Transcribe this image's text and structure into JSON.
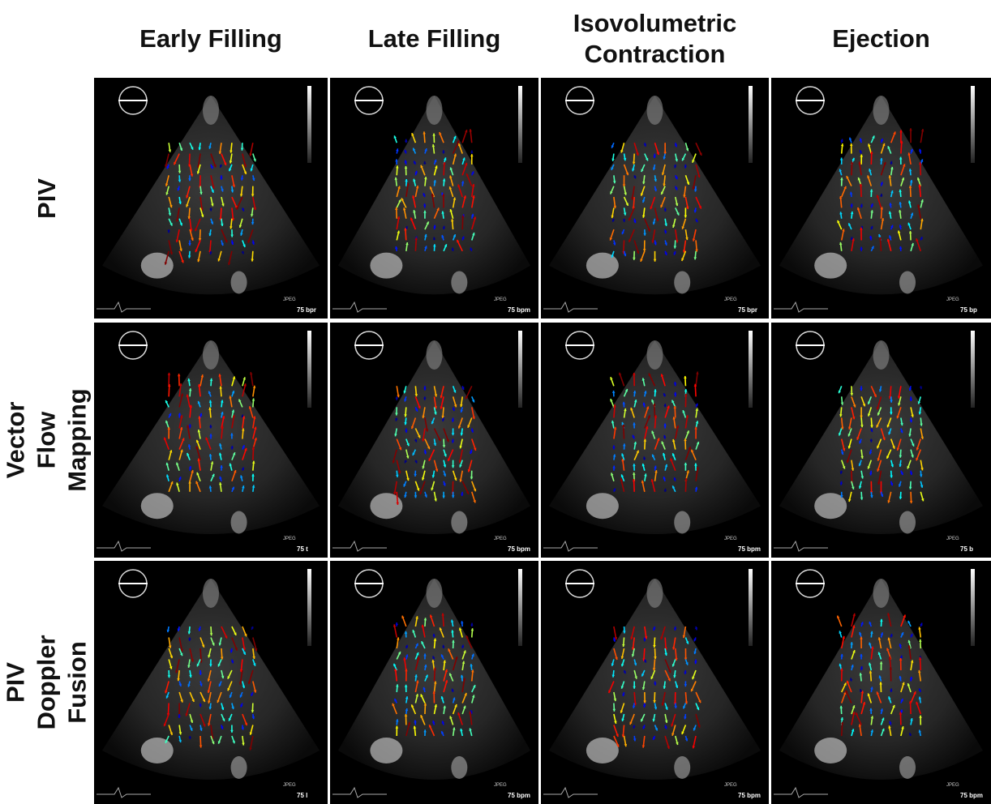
{
  "columns": [
    "Early Filling",
    "Late Filling",
    "Isovolumetric Contraction",
    "Ejection"
  ],
  "rows": [
    "PIV",
    "Vector Flow Mapping",
    "PIV Doppler Fusion"
  ],
  "panels": [
    [
      {
        "format": "JPEG",
        "rate": "75 bpr"
      },
      {
        "format": "JPEG",
        "rate": "75 bpm"
      },
      {
        "format": "JPEG",
        "rate": "75 bpr"
      },
      {
        "format": "JPEG",
        "rate": "75 bp"
      }
    ],
    [
      {
        "format": "JPEG",
        "rate": "75 t"
      },
      {
        "format": "JPEG",
        "rate": "75 bpm"
      },
      {
        "format": "JPEG",
        "rate": "75 bpm"
      },
      {
        "format": "JPEG",
        "rate": "75 b"
      }
    ],
    [
      {
        "format": "JPEG",
        "rate": "75 l"
      },
      {
        "format": "JPEG",
        "rate": "75 bpm"
      },
      {
        "format": "JPEG",
        "rate": "75 bpm"
      },
      {
        "format": "JPEG",
        "rate": "75 bpm"
      }
    ]
  ]
}
